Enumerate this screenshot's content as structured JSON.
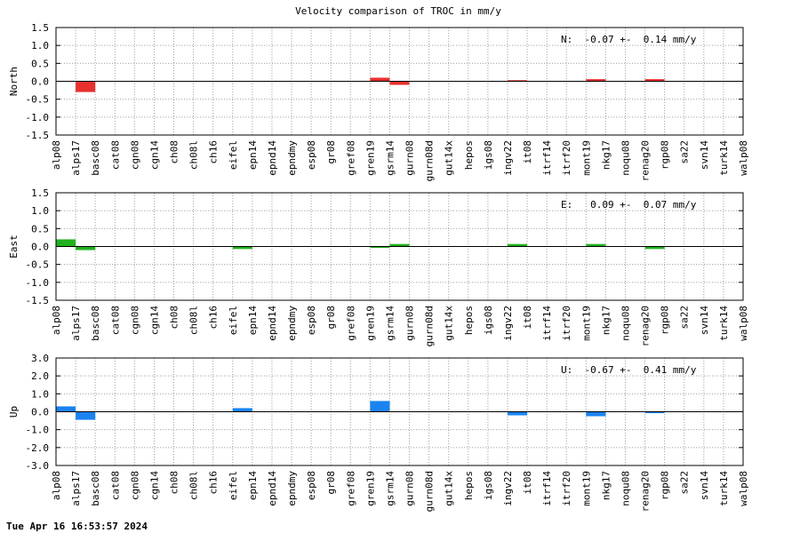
{
  "title": "Velocity comparison of TROC in mm/y",
  "timestamp": "Tue Apr 16 16:53:57 2024",
  "chart_data": [
    {
      "type": "bar",
      "ylabel": "North",
      "ylim": [
        -1.5,
        1.5
      ],
      "yticks": [
        "1.5",
        "1.0",
        "0.5",
        "0.0",
        "-0.5",
        "-1.0",
        "-1.5"
      ],
      "grid": true,
      "color": "#e8312e",
      "annotation": "N:  -0.07 +-  0.14 mm/y",
      "categories": [
        "alp08",
        "alps17",
        "basc08",
        "cat08",
        "cgn08",
        "cgn14",
        "ch08",
        "ch08l",
        "ch16",
        "eifel",
        "epn14",
        "epnd14",
        "epndmy",
        "esp08",
        "gr08",
        "gref08",
        "gren19",
        "gsrm14",
        "gurn08",
        "gurn08d",
        "gut14x",
        "hepos",
        "igs08",
        "ingv22",
        "it08",
        "itrf14",
        "itrf20",
        "mont19",
        "nkg17",
        "noqu08",
        "renag20",
        "rgp08",
        "sa22",
        "svn14",
        "turk14",
        "walp08"
      ],
      "values": [
        null,
        -0.3,
        null,
        null,
        null,
        null,
        null,
        null,
        null,
        null,
        null,
        null,
        null,
        null,
        null,
        null,
        0.1,
        -0.1,
        null,
        null,
        null,
        null,
        null,
        0.03,
        null,
        null,
        null,
        0.06,
        null,
        null,
        0.06,
        null,
        null,
        null,
        null,
        null
      ]
    },
    {
      "type": "bar",
      "ylabel": "East",
      "ylim": [
        -1.5,
        1.5
      ],
      "yticks": [
        "1.5",
        "1.0",
        "0.5",
        "0.0",
        "-0.5",
        "-1.0",
        "-1.5"
      ],
      "grid": true,
      "color": "#21b21d",
      "annotation": "E:   0.09 +-  0.07 mm/y",
      "categories": [
        "alp08",
        "alps17",
        "basc08",
        "cat08",
        "cgn08",
        "cgn14",
        "ch08",
        "ch08l",
        "ch16",
        "eifel",
        "epn14",
        "epnd14",
        "epndmy",
        "esp08",
        "gr08",
        "gref08",
        "gren19",
        "gsrm14",
        "gurn08",
        "gurn08d",
        "gut14x",
        "hepos",
        "igs08",
        "ingv22",
        "it08",
        "itrf14",
        "itrf20",
        "mont19",
        "nkg17",
        "noqu08",
        "renag20",
        "rgp08",
        "sa22",
        "svn14",
        "turk14",
        "walp08"
      ],
      "values": [
        0.2,
        -0.1,
        null,
        null,
        null,
        null,
        null,
        null,
        null,
        -0.07,
        null,
        null,
        null,
        null,
        null,
        null,
        -0.03,
        0.07,
        null,
        null,
        null,
        null,
        null,
        0.07,
        null,
        null,
        null,
        0.07,
        null,
        null,
        -0.07,
        null,
        null,
        null,
        null,
        null
      ]
    },
    {
      "type": "bar",
      "ylabel": "Up",
      "ylim": [
        -3.0,
        3.0
      ],
      "yticks": [
        "3.0",
        "2.0",
        "1.0",
        "0.0",
        "-1.0",
        "-2.0",
        "-3.0"
      ],
      "grid": true,
      "color": "#1a83f0",
      "annotation": "U:  -0.67 +-  0.41 mm/y",
      "categories": [
        "alp08",
        "alps17",
        "basc08",
        "cat08",
        "cgn08",
        "cgn14",
        "ch08",
        "ch08l",
        "ch16",
        "eifel",
        "epn14",
        "epnd14",
        "epndmy",
        "esp08",
        "gr08",
        "gref08",
        "gren19",
        "gsrm14",
        "gurn08",
        "gurn08d",
        "gut14x",
        "hepos",
        "igs08",
        "ingv22",
        "it08",
        "itrf14",
        "itrf20",
        "mont19",
        "nkg17",
        "noqu08",
        "renag20",
        "rgp08",
        "sa22",
        "svn14",
        "turk14",
        "walp08"
      ],
      "values": [
        0.3,
        -0.45,
        null,
        null,
        null,
        null,
        null,
        null,
        null,
        0.2,
        null,
        null,
        null,
        null,
        null,
        null,
        0.6,
        null,
        null,
        null,
        null,
        null,
        null,
        -0.2,
        null,
        null,
        null,
        -0.25,
        null,
        null,
        -0.08,
        null,
        null,
        null,
        null,
        null
      ]
    }
  ]
}
